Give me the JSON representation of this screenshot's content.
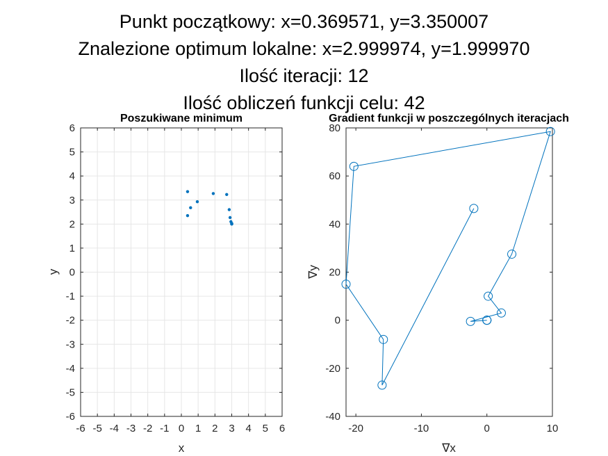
{
  "figure": {
    "title_lines": [
      "Punkt początkowy: x=0.369571, y=3.350007",
      "Znalezione optimum lokalne: x=2.999974, y=1.999970",
      "Ilość iteracji: 12",
      "Ilość obliczeń funkcji celu: 42"
    ]
  },
  "chart_data": [
    {
      "type": "scatter",
      "title": "Poszukiwane minimum",
      "xlabel": "x",
      "ylabel": "y",
      "xlim": [
        -6,
        6
      ],
      "ylim": [
        -6,
        6
      ],
      "xticks": [
        -6,
        -5,
        -4,
        -3,
        -2,
        -1,
        0,
        1,
        2,
        3,
        4,
        5,
        6
      ],
      "yticks": [
        -6,
        -5,
        -4,
        -3,
        -2,
        -1,
        0,
        1,
        2,
        3,
        4,
        5,
        6
      ],
      "grid": true,
      "color": "#0072bd",
      "x": [
        0.37,
        0.55,
        0.95,
        1.9,
        2.7,
        2.85,
        2.9,
        2.95,
        3.0,
        3.0,
        3.0,
        3.0,
        0.37
      ],
      "y": [
        3.35,
        2.68,
        2.93,
        3.27,
        3.23,
        2.6,
        2.27,
        2.1,
        2.03,
        2.01,
        2.0,
        2.0,
        2.35
      ]
    },
    {
      "type": "line",
      "title": "Gradient funkcji w  poszczególnych iteracjach",
      "xlabel": "∇x",
      "ylabel": "∇y",
      "xlim": [
        -21.5,
        10
      ],
      "ylim": [
        -40,
        80
      ],
      "xticks": [
        -20,
        -10,
        0,
        10
      ],
      "yticks": [
        -40,
        -20,
        0,
        20,
        40,
        60,
        80
      ],
      "grid": false,
      "marker": "circle",
      "color": "#0072bd",
      "x": [
        -2.0,
        -16.0,
        -15.8,
        -21.5,
        -20.3,
        9.7,
        3.8,
        0.2,
        2.2,
        -2.5,
        0.0,
        0.0,
        0.0
      ],
      "y": [
        46.5,
        -27.0,
        -8.0,
        15.0,
        64.0,
        78.5,
        27.5,
        10.0,
        3.0,
        -0.5,
        0.0,
        0.0,
        0.0
      ]
    }
  ]
}
